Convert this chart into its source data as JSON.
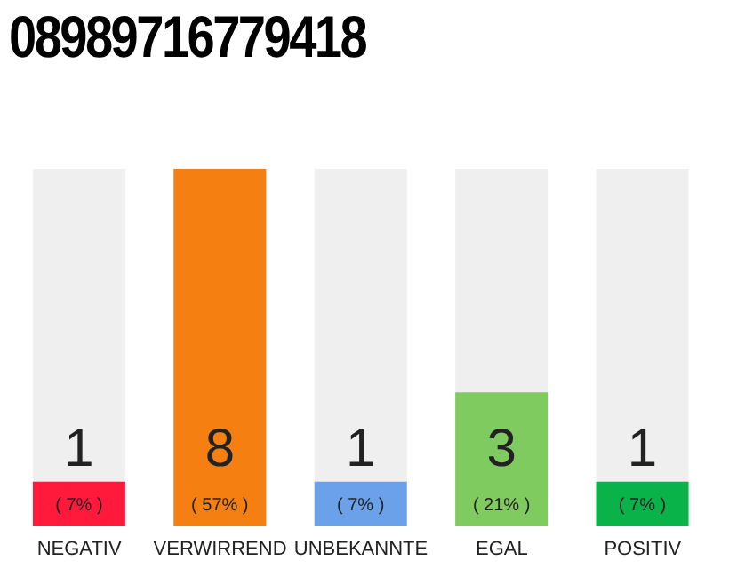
{
  "chart_data": {
    "type": "bar",
    "title": "08989716779418",
    "categories": [
      "NEGATIV",
      "VERWIRREND",
      "UNBEKANNTE",
      "EGAL",
      "POSITIV"
    ],
    "values": [
      1,
      8,
      1,
      3,
      1
    ],
    "colors": [
      "#ff1a3c",
      "#f57f10",
      "#6aa1e8",
      "#80cb60",
      "#0ab34a"
    ],
    "value_labels": [
      "1 ( 7% )",
      "8 ( 57% )",
      "1 ( 7% )",
      "3 ( 21% )",
      "1 ( 7% )"
    ],
    "ylim": [
      0,
      8
    ],
    "tick_labels": "x",
    "grid": false,
    "legend": false
  }
}
